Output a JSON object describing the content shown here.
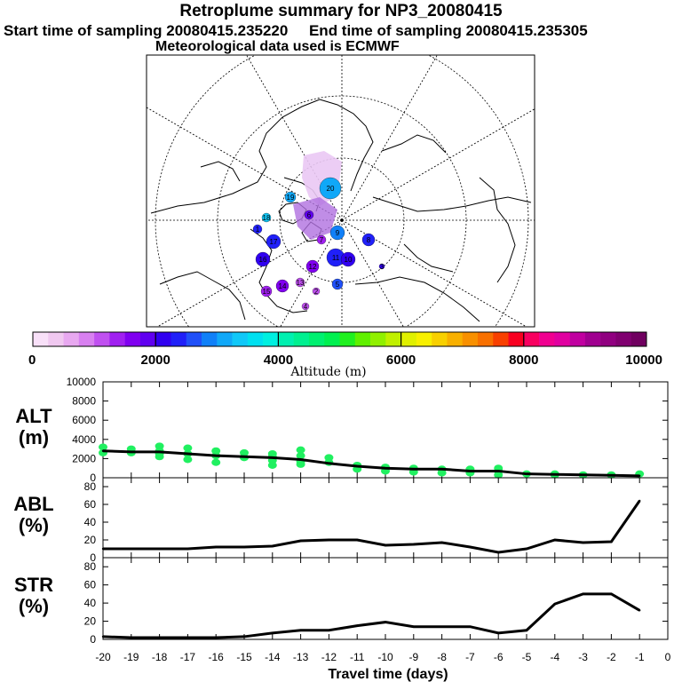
{
  "header": {
    "title": "Retroplume summary for NP3_20080415",
    "subtitle_left": "Start time of sampling 20080415.235220",
    "subtitle_right": "End time of sampling 20080415.235305",
    "met_line": "Meteorological data used is ECMWF"
  },
  "map": {
    "cluster_labels": [
      "20",
      "19",
      "18",
      "17",
      "16",
      "15",
      "14",
      "13",
      "12",
      "11",
      "10",
      "9",
      "8",
      "7",
      "6",
      "5",
      "4",
      "3",
      "2",
      "1"
    ]
  },
  "colorbar": {
    "tick_labels": [
      "0",
      "2000",
      "4000",
      "6000",
      "8000",
      "10000"
    ],
    "label": "Altitude (m)",
    "colors": [
      "#f8e0f8",
      "#f0c8f0",
      "#e8a8f0",
      "#d880f0",
      "#c050f0",
      "#a020f0",
      "#8000f0",
      "#6000f0",
      "#3000f0",
      "#2020f8",
      "#2050f8",
      "#1080f8",
      "#10a8f8",
      "#10c8f8",
      "#00e0f0",
      "#00f0e0",
      "#00f0b0",
      "#00f090",
      "#00f070",
      "#00f050",
      "#20f020",
      "#60f000",
      "#90f000",
      "#c0f000",
      "#e0f000",
      "#f8f000",
      "#f8d000",
      "#f8b000",
      "#f89000",
      "#f87000",
      "#f84000",
      "#f80020",
      "#f80060",
      "#f00090",
      "#e000a0",
      "#c000a0",
      "#a00090",
      "#900080",
      "#800070",
      "#700060"
    ]
  },
  "chart_data": [
    {
      "type": "line",
      "name": "ALT",
      "ylabel": "ALT\n(m)",
      "ylabel_lines": [
        "ALT",
        "(m)"
      ],
      "ylim": [
        0,
        10000
      ],
      "yticks": [
        0,
        2000,
        4000,
        6000,
        8000,
        10000
      ],
      "x": [
        -20,
        -19,
        -18,
        -17,
        -16,
        -15,
        -14,
        -13,
        -12,
        -11,
        -10,
        -9,
        -8,
        -7,
        -6,
        -5,
        -4,
        -3,
        -2,
        -1
      ],
      "values": [
        2800,
        2700,
        2700,
        2500,
        2300,
        2200,
        2100,
        1900,
        1500,
        1200,
        1000,
        900,
        900,
        700,
        700,
        400,
        350,
        300,
        250,
        200
      ],
      "scatter_points": [
        [
          -20,
          3200
        ],
        [
          -20,
          2600
        ],
        [
          -19,
          3000
        ],
        [
          -19,
          2600
        ],
        [
          -18,
          3300
        ],
        [
          -18,
          2800
        ],
        [
          -18,
          2500
        ],
        [
          -18,
          2200
        ],
        [
          -17,
          3100
        ],
        [
          -17,
          2500
        ],
        [
          -17,
          1900
        ],
        [
          -16,
          2800
        ],
        [
          -16,
          2300
        ],
        [
          -16,
          1600
        ],
        [
          -15,
          2600
        ],
        [
          -15,
          2100
        ],
        [
          -14,
          2500
        ],
        [
          -14,
          2200
        ],
        [
          -14,
          1800
        ],
        [
          -14,
          1300
        ],
        [
          -13,
          2900
        ],
        [
          -13,
          2300
        ],
        [
          -13,
          1700
        ],
        [
          -13,
          1400
        ],
        [
          -12,
          2100
        ],
        [
          -12,
          1600
        ],
        [
          -11,
          1300
        ],
        [
          -11,
          900
        ],
        [
          -10,
          1100
        ],
        [
          -10,
          700
        ],
        [
          -9,
          1000
        ],
        [
          -9,
          600
        ],
        [
          -8,
          900
        ],
        [
          -8,
          500
        ],
        [
          -7,
          900
        ],
        [
          -7,
          500
        ],
        [
          -6,
          1000
        ],
        [
          -6,
          700
        ],
        [
          -6,
          300
        ],
        [
          -5,
          400
        ],
        [
          -4,
          400
        ],
        [
          -4,
          300
        ],
        [
          -3,
          300
        ],
        [
          -2,
          300
        ],
        [
          -1,
          400
        ]
      ]
    },
    {
      "type": "line",
      "name": "ABL",
      "ylabel_lines": [
        "ABL",
        "(%)"
      ],
      "ylim": [
        0,
        90
      ],
      "yticks": [
        0,
        20,
        40,
        60,
        80
      ],
      "x": [
        -20,
        -19,
        -18,
        -17,
        -16,
        -15,
        -14,
        -13,
        -12,
        -11,
        -10,
        -9,
        -8,
        -7,
        -6,
        -5,
        -4,
        -3,
        -2,
        -1
      ],
      "values": [
        10,
        10,
        10,
        10,
        12,
        12,
        13,
        19,
        20,
        20,
        14,
        15,
        17,
        12,
        6,
        10,
        20,
        17,
        18,
        64
      ]
    },
    {
      "type": "line",
      "name": "STR",
      "ylabel_lines": [
        "STR",
        "(%)"
      ],
      "ylim": [
        0,
        90
      ],
      "yticks": [
        0,
        20,
        40,
        60,
        80
      ],
      "x": [
        -20,
        -19,
        -18,
        -17,
        -16,
        -15,
        -14,
        -13,
        -12,
        -11,
        -10,
        -9,
        -8,
        -7,
        -6,
        -5,
        -4,
        -3,
        -2,
        -1
      ],
      "values": [
        3,
        2,
        2,
        2,
        2,
        3,
        7,
        10,
        10,
        15,
        19,
        14,
        14,
        14,
        7,
        10,
        39,
        50,
        50,
        32
      ]
    }
  ],
  "x_axis": {
    "tick_labels": [
      "-20",
      "-19",
      "-18",
      "-17",
      "-16",
      "-15",
      "-14",
      "-13",
      "-12",
      "-11",
      "-10",
      "-9",
      "-8",
      "-7",
      "-6",
      "-5",
      "-4",
      "-3",
      "-2",
      "-1",
      "0"
    ],
    "label": "Travel time (days)"
  }
}
